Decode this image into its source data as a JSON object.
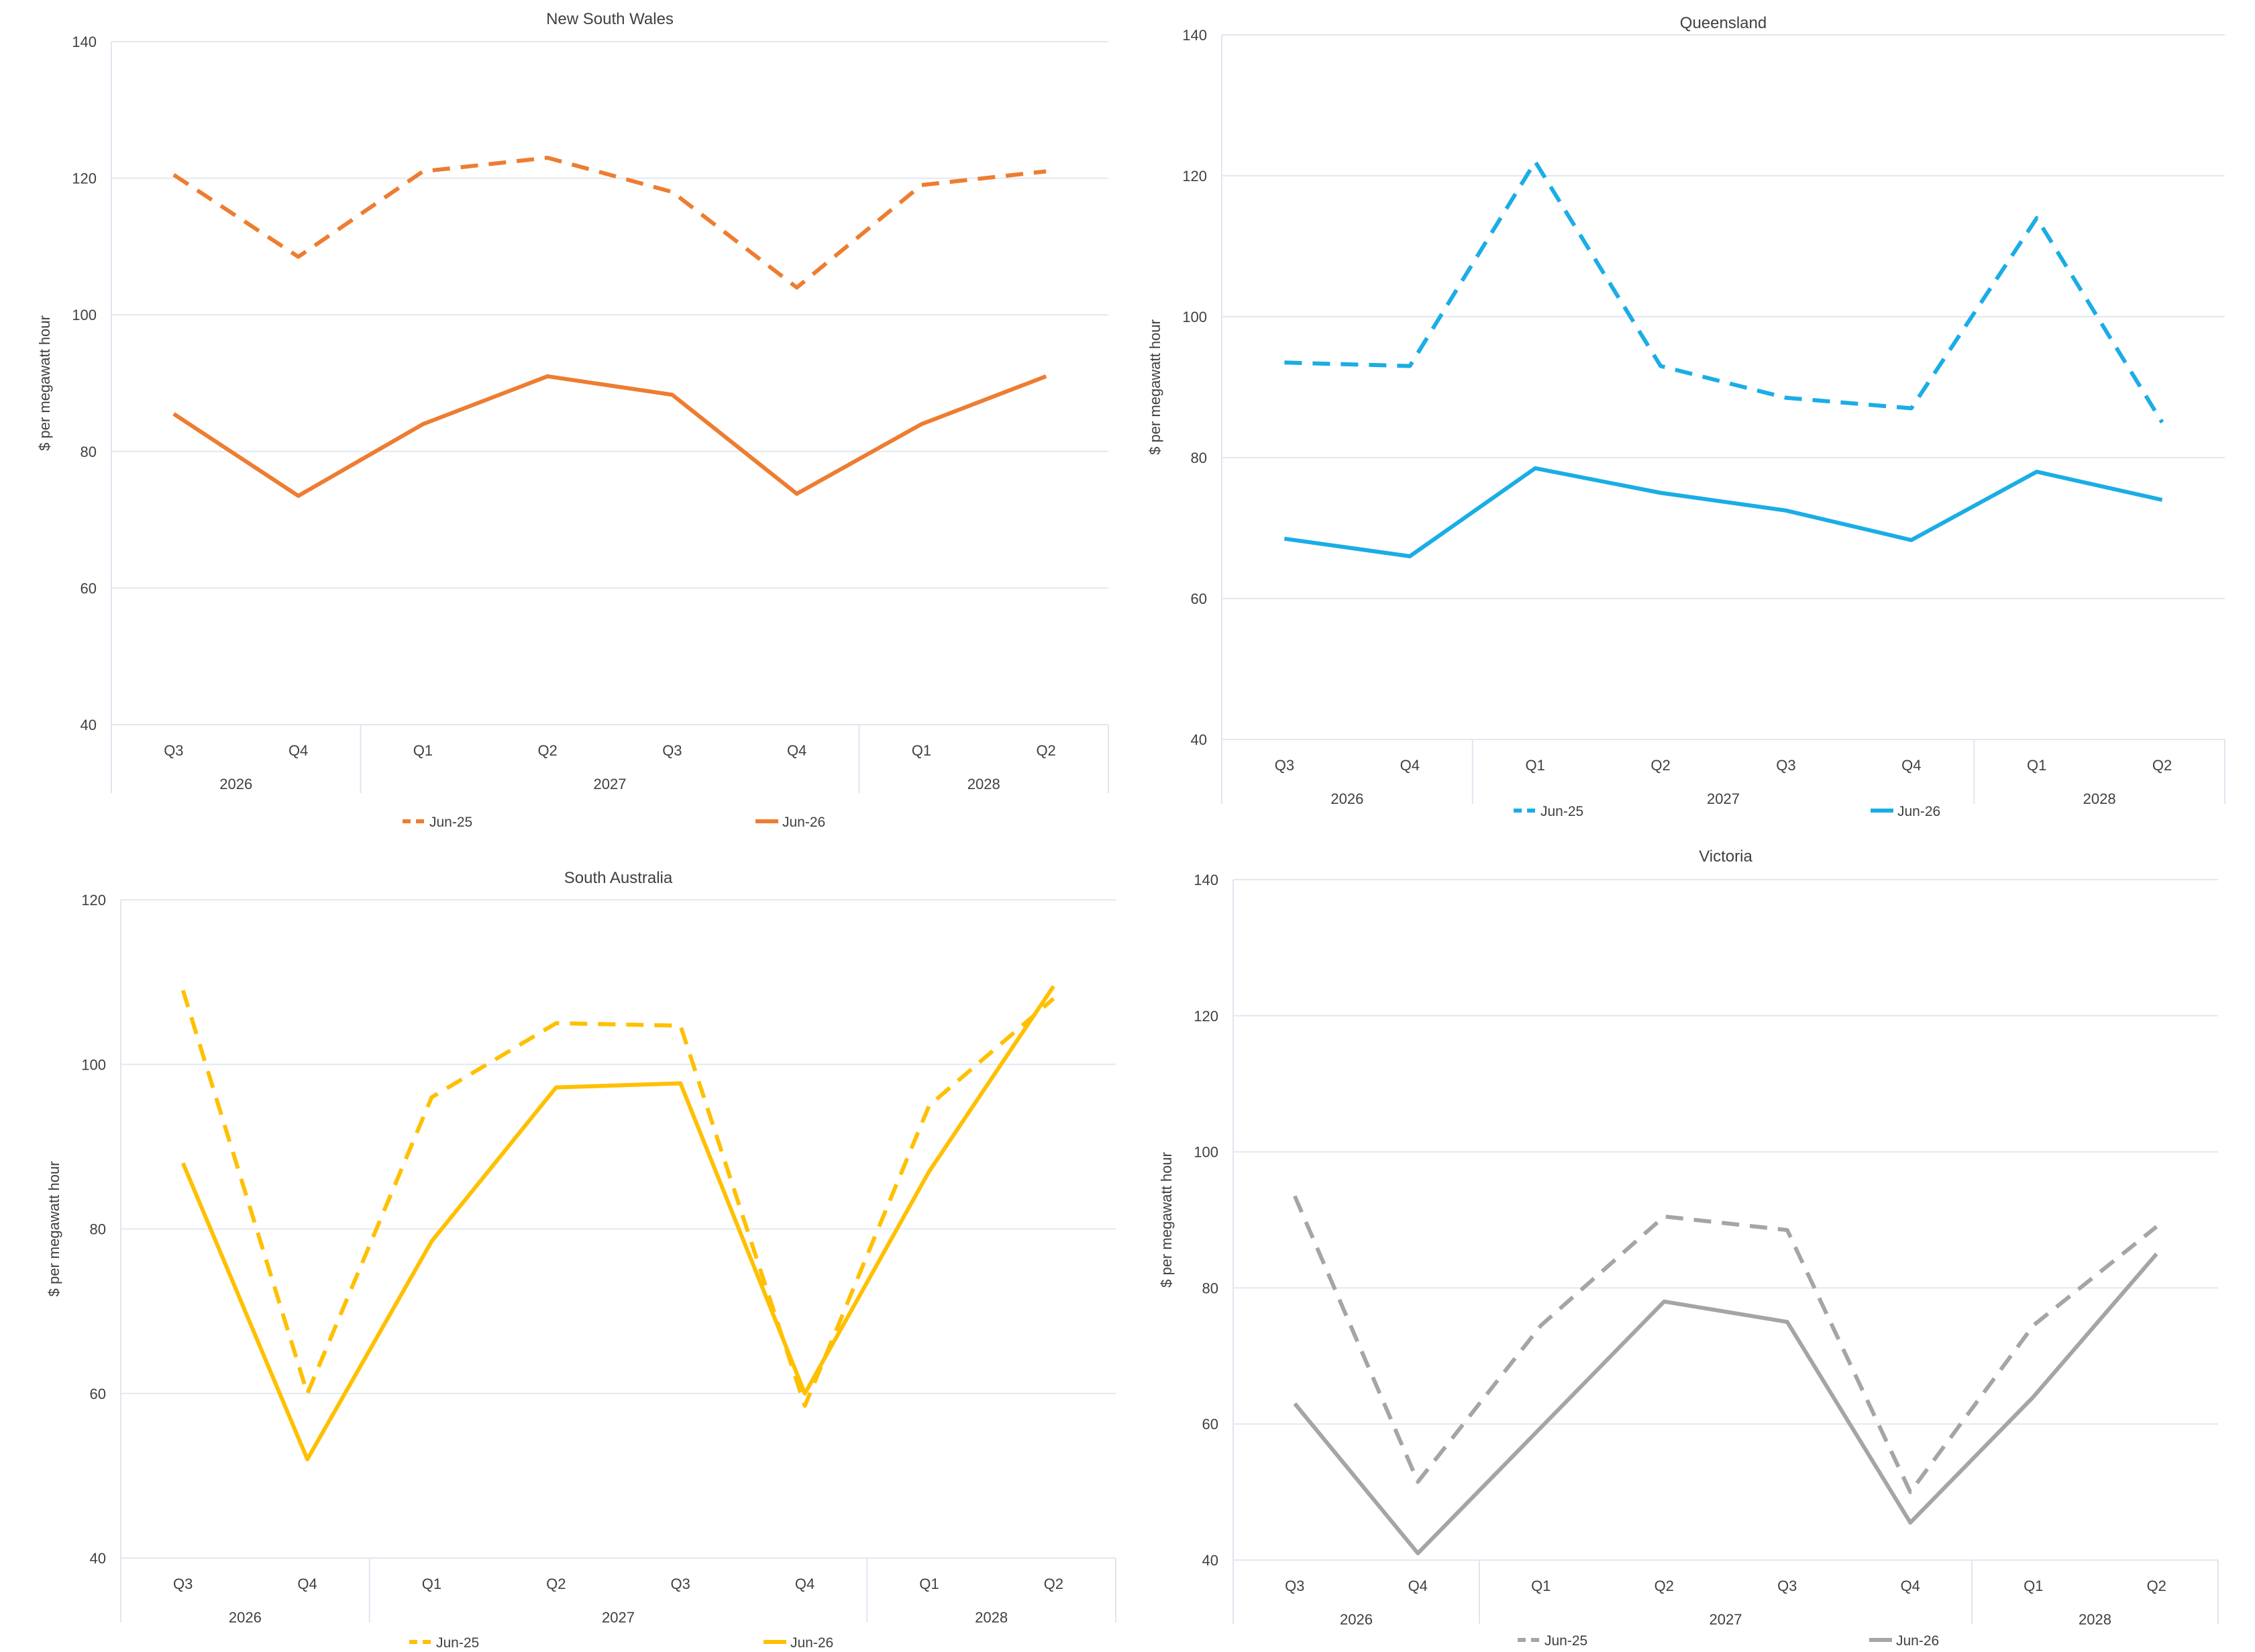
{
  "chart_data": [
    {
      "type": "line",
      "title": "New South Wales",
      "ylabel": "$ per megawatt hour",
      "ylim": [
        40,
        140
      ],
      "yticks": [
        40,
        60,
        80,
        100,
        120,
        140
      ],
      "categories": [
        "Q3",
        "Q4",
        "Q1",
        "Q2",
        "Q3",
        "Q4",
        "Q1",
        "Q2"
      ],
      "year_groups": [
        {
          "label": "2026",
          "span": 2
        },
        {
          "label": "2027",
          "span": 4
        },
        {
          "label": "2028",
          "span": 2
        }
      ],
      "color": "#ED7D31",
      "grid": true,
      "legend_position": "bottom",
      "series": [
        {
          "name": "Jun-25",
          "dash": true,
          "values": [
            120.5,
            108.5,
            121,
            123,
            118,
            104,
            119,
            121
          ]
        },
        {
          "name": "Jun-26",
          "dash": false,
          "values": [
            85.5,
            73.5,
            84,
            91,
            88.3,
            73.8,
            84,
            91
          ]
        }
      ]
    },
    {
      "type": "line",
      "title": "Queensland",
      "ylabel": "$ per megawatt hour",
      "ylim": [
        40,
        140
      ],
      "yticks": [
        40,
        60,
        80,
        100,
        120,
        140
      ],
      "categories": [
        "Q3",
        "Q4",
        "Q1",
        "Q2",
        "Q3",
        "Q4",
        "Q1",
        "Q2"
      ],
      "year_groups": [
        {
          "label": "2026",
          "span": 2
        },
        {
          "label": "2027",
          "span": 4
        },
        {
          "label": "2028",
          "span": 2
        }
      ],
      "color": "#1AADE6",
      "grid": true,
      "legend_position": "bottom",
      "series": [
        {
          "name": "Jun-25",
          "dash": true,
          "values": [
            93.5,
            93,
            122,
            93,
            88.5,
            87,
            114,
            85
          ]
        },
        {
          "name": "Jun-26",
          "dash": false,
          "values": [
            68.5,
            66,
            78.5,
            75,
            72.5,
            68.3,
            78,
            74
          ]
        }
      ]
    },
    {
      "type": "line",
      "title": "South Australia",
      "ylabel": "$ per megawatt hour",
      "ylim": [
        40,
        120
      ],
      "yticks": [
        40,
        60,
        80,
        100,
        120
      ],
      "categories": [
        "Q3",
        "Q4",
        "Q1",
        "Q2",
        "Q3",
        "Q4",
        "Q1",
        "Q2"
      ],
      "year_groups": [
        {
          "label": "2026",
          "span": 2
        },
        {
          "label": "2027",
          "span": 4
        },
        {
          "label": "2028",
          "span": 2
        }
      ],
      "color": "#FFC000",
      "grid": true,
      "legend_position": "bottom",
      "series": [
        {
          "name": "Jun-25",
          "dash": true,
          "values": [
            109,
            60,
            96,
            105,
            104.7,
            58.5,
            95,
            108
          ]
        },
        {
          "name": "Jun-26",
          "dash": false,
          "values": [
            88,
            52,
            78.5,
            97.2,
            97.7,
            60,
            87,
            109.5
          ]
        }
      ]
    },
    {
      "type": "line",
      "title": "Victoria",
      "ylabel": "$ per megawatt hour",
      "ylim": [
        40,
        140
      ],
      "yticks": [
        40,
        60,
        80,
        100,
        120,
        140
      ],
      "categories": [
        "Q3",
        "Q4",
        "Q1",
        "Q2",
        "Q3",
        "Q4",
        "Q1",
        "Q2"
      ],
      "year_groups": [
        {
          "label": "2026",
          "span": 2
        },
        {
          "label": "2027",
          "span": 4
        },
        {
          "label": "2028",
          "span": 2
        }
      ],
      "color": "#A5A5A5",
      "grid": true,
      "legend_position": "bottom",
      "series": [
        {
          "name": "Jun-25",
          "dash": true,
          "values": [
            93.5,
            51.5,
            74.5,
            90.5,
            88.5,
            50,
            74.5,
            89
          ]
        },
        {
          "name": "Jun-26",
          "dash": false,
          "values": [
            63,
            41,
            59.5,
            78,
            75,
            45.5,
            64,
            85
          ]
        }
      ]
    }
  ]
}
